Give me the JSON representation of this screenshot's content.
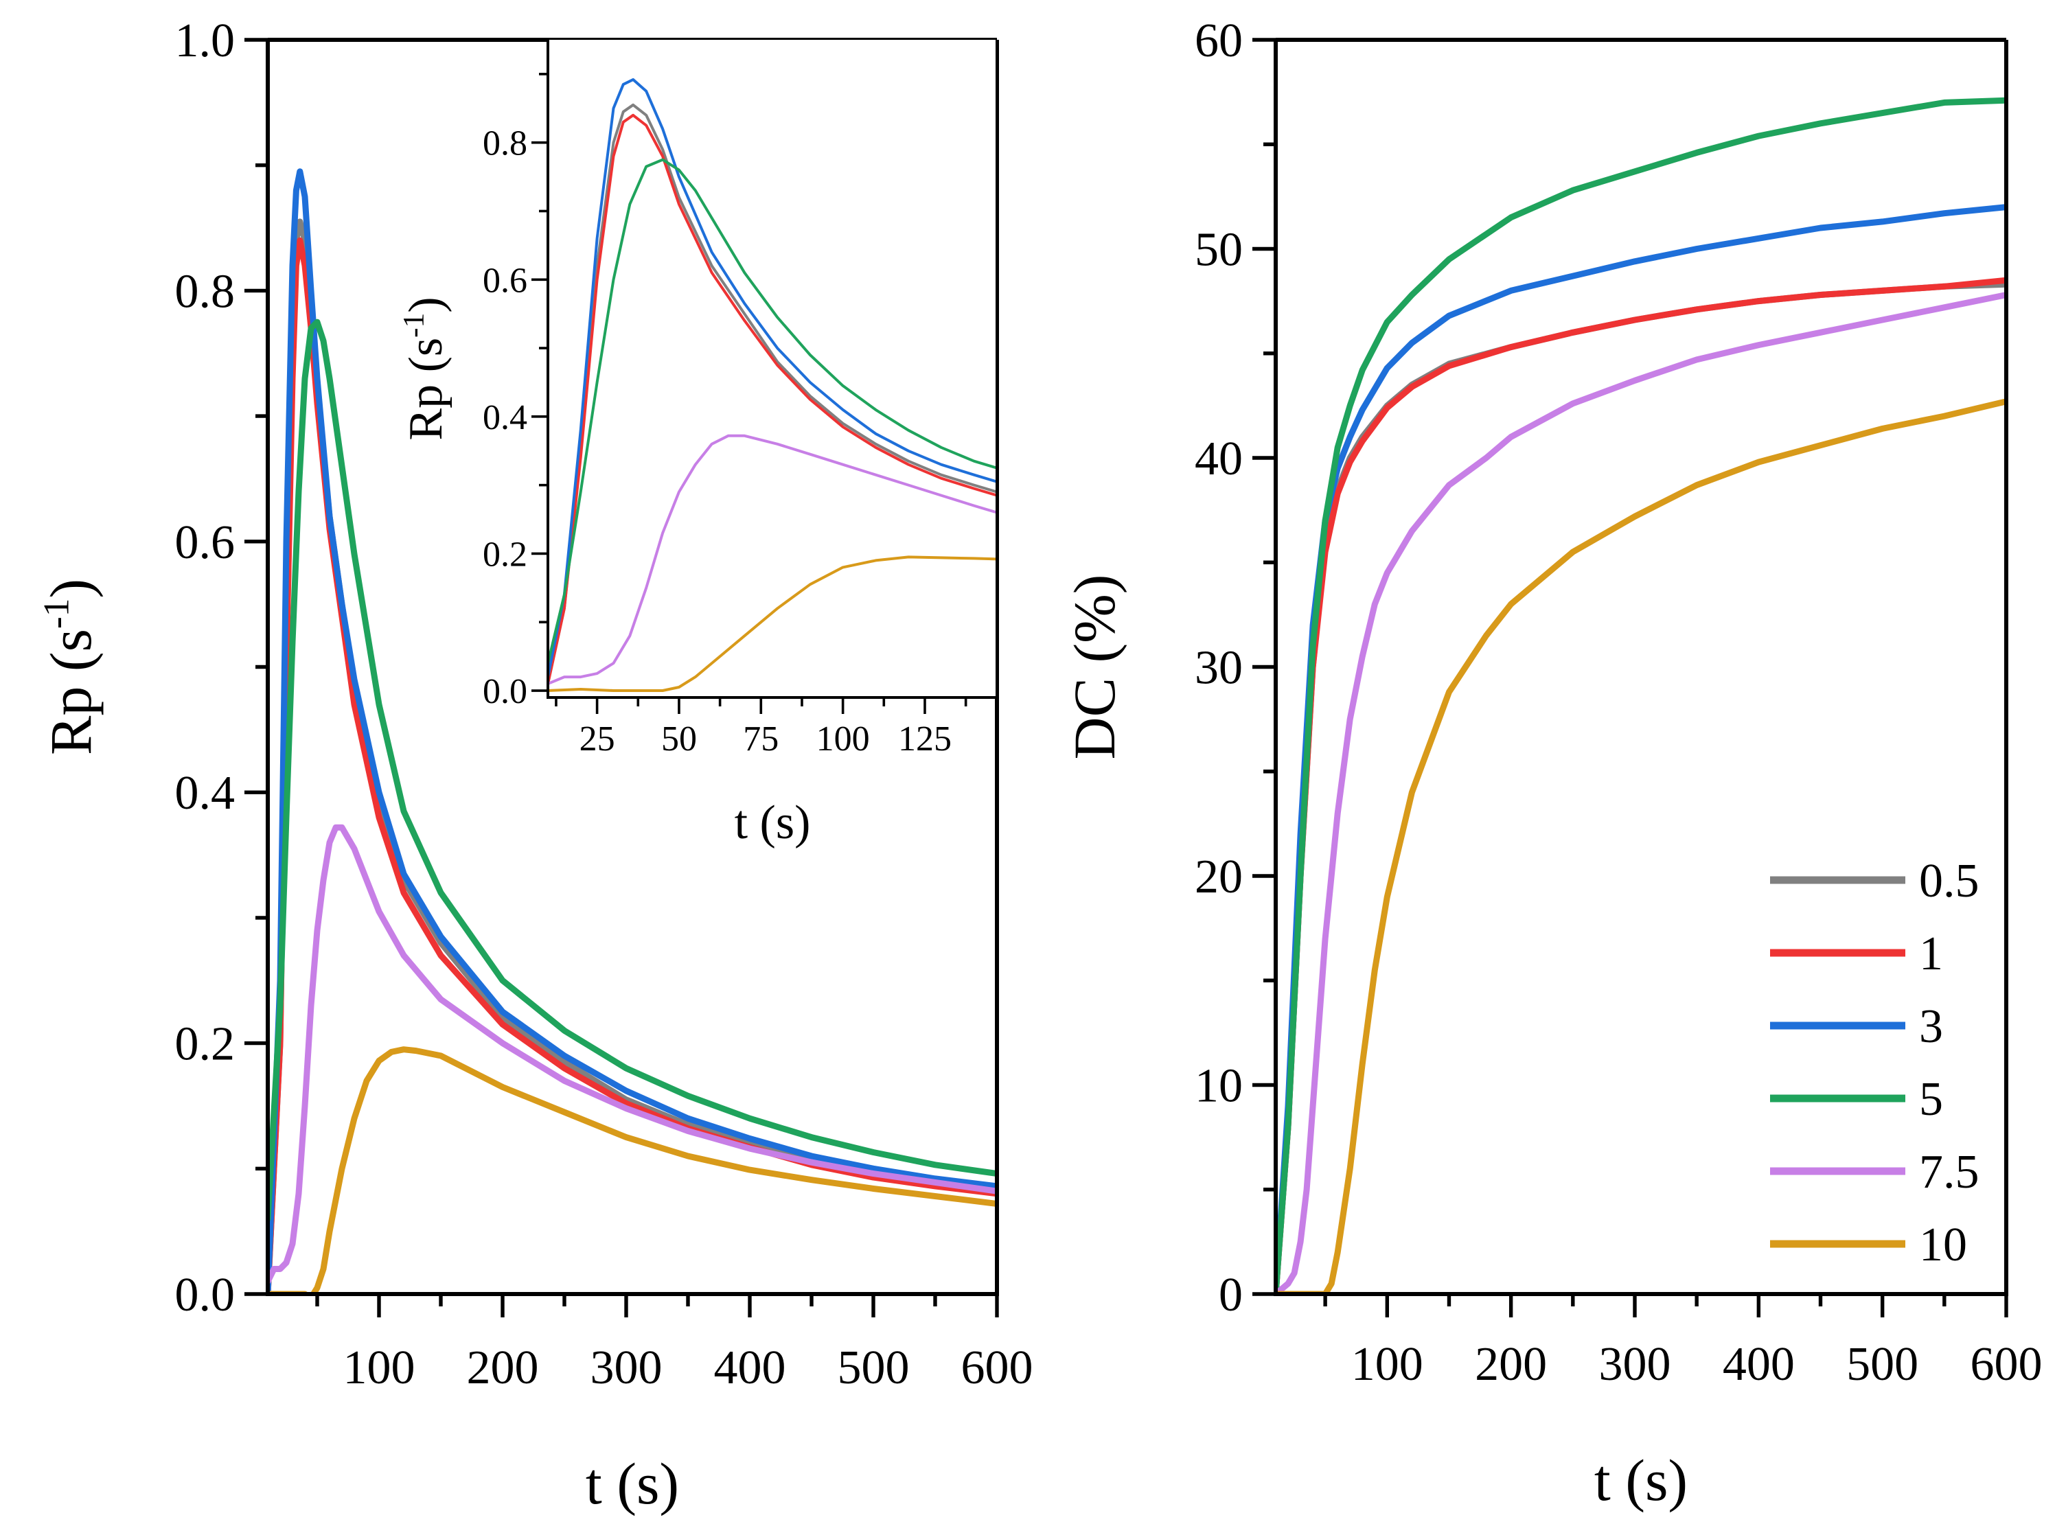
{
  "chart_data": [
    {
      "type": "line",
      "xlabel": "t (s)",
      "ylabel": "Rp (s-1)",
      "xlim": [
        10,
        600
      ],
      "ylim": [
        0,
        1.0
      ],
      "xticks": [
        100,
        200,
        300,
        400,
        500,
        600
      ],
      "yticks": [
        0.0,
        0.2,
        0.4,
        0.6,
        0.8,
        1.0
      ],
      "ytick_labels": [
        "0.0",
        "0.2",
        "0.4",
        "0.6",
        "0.8",
        "1.0"
      ],
      "series": [
        {
          "name": "0.5",
          "color": "#808080",
          "x": [
            10,
            20,
            25,
            30,
            33,
            36,
            40,
            45,
            50,
            60,
            70,
            80,
            100,
            120,
            150,
            200,
            250,
            300,
            350,
            400,
            450,
            500,
            550,
            600
          ],
          "y": [
            0.0,
            0.2,
            0.5,
            0.75,
            0.84,
            0.855,
            0.84,
            0.78,
            0.72,
            0.62,
            0.55,
            0.48,
            0.39,
            0.33,
            0.28,
            0.22,
            0.185,
            0.155,
            0.135,
            0.12,
            0.105,
            0.095,
            0.088,
            0.082
          ]
        },
        {
          "name": "1",
          "color": "#ee3333",
          "x": [
            10,
            20,
            25,
            30,
            33,
            36,
            40,
            45,
            50,
            60,
            70,
            80,
            100,
            120,
            150,
            200,
            250,
            300,
            350,
            400,
            450,
            500,
            550,
            600
          ],
          "y": [
            0.0,
            0.2,
            0.5,
            0.73,
            0.82,
            0.84,
            0.82,
            0.77,
            0.71,
            0.61,
            0.54,
            0.47,
            0.38,
            0.32,
            0.27,
            0.215,
            0.18,
            0.152,
            0.132,
            0.117,
            0.103,
            0.093,
            0.086,
            0.08
          ]
        },
        {
          "name": "3",
          "color": "#1e6fd9",
          "x": [
            10,
            20,
            25,
            30,
            33,
            36,
            40,
            45,
            50,
            60,
            70,
            80,
            100,
            120,
            150,
            200,
            250,
            300,
            350,
            400,
            450,
            500,
            550,
            600
          ],
          "y": [
            0.0,
            0.25,
            0.6,
            0.82,
            0.88,
            0.895,
            0.875,
            0.8,
            0.73,
            0.62,
            0.55,
            0.49,
            0.4,
            0.335,
            0.285,
            0.225,
            0.19,
            0.162,
            0.14,
            0.124,
            0.11,
            0.1,
            0.092,
            0.086
          ]
        },
        {
          "name": "5",
          "color": "#1fa35c",
          "x": [
            10,
            20,
            25,
            30,
            35,
            40,
            45,
            50,
            55,
            60,
            70,
            80,
            100,
            120,
            150,
            200,
            250,
            300,
            350,
            400,
            450,
            500,
            550,
            600
          ],
          "y": [
            0.06,
            0.23,
            0.38,
            0.52,
            0.64,
            0.73,
            0.77,
            0.775,
            0.76,
            0.73,
            0.66,
            0.59,
            0.47,
            0.385,
            0.32,
            0.25,
            0.21,
            0.18,
            0.158,
            0.14,
            0.125,
            0.113,
            0.103,
            0.096
          ]
        },
        {
          "name": "7.5",
          "color": "#c77fe6",
          "x": [
            10,
            15,
            20,
            25,
            30,
            35,
            40,
            45,
            50,
            55,
            60,
            65,
            70,
            80,
            90,
            100,
            120,
            150,
            200,
            250,
            300,
            350,
            400,
            450,
            500,
            550,
            600
          ],
          "y": [
            0.01,
            0.02,
            0.02,
            0.025,
            0.04,
            0.08,
            0.15,
            0.23,
            0.29,
            0.33,
            0.36,
            0.372,
            0.372,
            0.355,
            0.33,
            0.305,
            0.27,
            0.235,
            0.2,
            0.17,
            0.148,
            0.13,
            0.116,
            0.105,
            0.096,
            0.089,
            0.082
          ]
        },
        {
          "name": "10",
          "color": "#d89a1a",
          "x": [
            10,
            20,
            30,
            40,
            45,
            50,
            55,
            60,
            70,
            80,
            90,
            100,
            110,
            120,
            130,
            150,
            200,
            250,
            300,
            350,
            400,
            450,
            500,
            550,
            600
          ],
          "y": [
            0.0,
            0.0,
            0.0,
            0.0,
            -0.003,
            0.005,
            0.02,
            0.05,
            0.1,
            0.14,
            0.17,
            0.186,
            0.193,
            0.195,
            0.194,
            0.19,
            0.165,
            0.145,
            0.125,
            0.11,
            0.099,
            0.091,
            0.084,
            0.078,
            0.072
          ]
        }
      ]
    },
    {
      "type": "line",
      "inset": true,
      "xlabel": "t (s)",
      "ylabel": "Rp (s-1)",
      "xlim": [
        10,
        147
      ],
      "ylim": [
        -0.01,
        0.95
      ],
      "xticks": [
        25,
        50,
        75,
        100,
        125
      ],
      "yticks": [
        0.0,
        0.2,
        0.4,
        0.6,
        0.8
      ],
      "ytick_labels": [
        "0.0",
        "0.2",
        "0.4",
        "0.6",
        "0.8"
      ],
      "series": [
        {
          "name": "0.5",
          "color": "#808080",
          "x": [
            10,
            15,
            20,
            25,
            30,
            33,
            36,
            40,
            45,
            50,
            60,
            70,
            80,
            90,
            100,
            110,
            120,
            130,
            140,
            147
          ],
          "y": [
            0.01,
            0.12,
            0.35,
            0.62,
            0.8,
            0.845,
            0.855,
            0.84,
            0.79,
            0.72,
            0.62,
            0.55,
            0.48,
            0.43,
            0.39,
            0.36,
            0.335,
            0.315,
            0.3,
            0.29
          ]
        },
        {
          "name": "1",
          "color": "#ee3333",
          "x": [
            10,
            15,
            20,
            25,
            30,
            33,
            36,
            40,
            45,
            50,
            60,
            70,
            80,
            90,
            100,
            110,
            120,
            130,
            140,
            147
          ],
          "y": [
            0.01,
            0.12,
            0.34,
            0.6,
            0.78,
            0.83,
            0.84,
            0.825,
            0.78,
            0.71,
            0.61,
            0.54,
            0.475,
            0.425,
            0.385,
            0.355,
            0.33,
            0.31,
            0.295,
            0.285
          ]
        },
        {
          "name": "3",
          "color": "#1e6fd9",
          "x": [
            10,
            15,
            20,
            25,
            30,
            33,
            36,
            40,
            45,
            50,
            60,
            70,
            80,
            90,
            100,
            110,
            120,
            130,
            140,
            147
          ],
          "y": [
            0.02,
            0.14,
            0.38,
            0.66,
            0.85,
            0.885,
            0.892,
            0.875,
            0.82,
            0.75,
            0.64,
            0.565,
            0.5,
            0.45,
            0.41,
            0.375,
            0.35,
            0.33,
            0.315,
            0.305
          ]
        },
        {
          "name": "5",
          "color": "#1fa35c",
          "x": [
            10,
            15,
            20,
            25,
            30,
            35,
            40,
            45,
            50,
            55,
            60,
            70,
            80,
            90,
            100,
            110,
            120,
            130,
            140,
            147
          ],
          "y": [
            0.04,
            0.14,
            0.29,
            0.45,
            0.6,
            0.71,
            0.765,
            0.775,
            0.76,
            0.73,
            0.69,
            0.61,
            0.545,
            0.49,
            0.445,
            0.41,
            0.38,
            0.355,
            0.335,
            0.325
          ]
        },
        {
          "name": "7.5",
          "color": "#c77fe6",
          "x": [
            10,
            15,
            20,
            25,
            30,
            35,
            40,
            45,
            50,
            55,
            60,
            65,
            70,
            80,
            90,
            100,
            110,
            120,
            130,
            140,
            147
          ],
          "y": [
            0.01,
            0.02,
            0.02,
            0.025,
            0.04,
            0.08,
            0.15,
            0.23,
            0.29,
            0.33,
            0.36,
            0.372,
            0.372,
            0.36,
            0.345,
            0.33,
            0.315,
            0.3,
            0.285,
            0.27,
            0.26
          ]
        },
        {
          "name": "10",
          "color": "#d89a1a",
          "x": [
            10,
            20,
            30,
            40,
            45,
            50,
            55,
            60,
            70,
            80,
            90,
            100,
            110,
            120,
            130,
            140,
            147
          ],
          "y": [
            0.0,
            0.002,
            0.0,
            0.0,
            0.0,
            0.005,
            0.02,
            0.04,
            0.08,
            0.12,
            0.155,
            0.18,
            0.19,
            0.195,
            0.194,
            0.193,
            0.192
          ]
        }
      ]
    },
    {
      "type": "line",
      "xlabel": "t (s)",
      "ylabel": "DC (%)",
      "xlim": [
        10,
        600
      ],
      "ylim": [
        0,
        60
      ],
      "xticks": [
        100,
        200,
        300,
        400,
        500,
        600
      ],
      "yticks": [
        0,
        10,
        20,
        30,
        40,
        50,
        60
      ],
      "ytick_labels": [
        "0",
        "10",
        "20",
        "30",
        "40",
        "50",
        "60"
      ],
      "legend": "bottom-right",
      "series": [
        {
          "name": "0.5",
          "color": "#808080",
          "x": [
            10,
            20,
            30,
            40,
            50,
            60,
            70,
            80,
            100,
            120,
            150,
            200,
            250,
            300,
            350,
            400,
            450,
            500,
            550,
            600
          ],
          "y": [
            0,
            8,
            20,
            30,
            36,
            38.5,
            40,
            41,
            42.5,
            43.5,
            44.5,
            45.3,
            46,
            46.6,
            47.1,
            47.5,
            47.8,
            48,
            48.2,
            48.3
          ]
        },
        {
          "name": "1",
          "color": "#ee3333",
          "x": [
            10,
            20,
            30,
            40,
            50,
            60,
            70,
            80,
            100,
            120,
            150,
            200,
            250,
            300,
            350,
            400,
            450,
            500,
            550,
            600
          ],
          "y": [
            0,
            8,
            20,
            30,
            35.5,
            38.3,
            39.8,
            40.8,
            42.4,
            43.4,
            44.4,
            45.3,
            46,
            46.6,
            47.1,
            47.5,
            47.8,
            48,
            48.2,
            48.5
          ]
        },
        {
          "name": "3",
          "color": "#1e6fd9",
          "x": [
            10,
            20,
            30,
            40,
            50,
            60,
            70,
            80,
            100,
            120,
            150,
            200,
            250,
            300,
            350,
            400,
            450,
            500,
            550,
            600
          ],
          "y": [
            0,
            9,
            22,
            32,
            37,
            39.5,
            41,
            42.3,
            44.3,
            45.5,
            46.8,
            48,
            48.7,
            49.4,
            50,
            50.5,
            51,
            51.3,
            51.7,
            52
          ]
        },
        {
          "name": "5",
          "color": "#1fa35c",
          "x": [
            10,
            20,
            30,
            40,
            50,
            60,
            70,
            80,
            100,
            120,
            150,
            200,
            250,
            300,
            350,
            400,
            450,
            500,
            550,
            600
          ],
          "y": [
            0,
            8,
            20,
            31,
            37,
            40.5,
            42.5,
            44.2,
            46.5,
            47.8,
            49.5,
            51.5,
            52.8,
            53.7,
            54.6,
            55.4,
            56,
            56.5,
            57,
            57.1
          ]
        },
        {
          "name": "7.5",
          "color": "#c77fe6",
          "x": [
            10,
            20,
            25,
            30,
            35,
            40,
            50,
            60,
            70,
            80,
            90,
            100,
            120,
            150,
            180,
            200,
            250,
            300,
            350,
            400,
            450,
            500,
            550,
            600
          ],
          "y": [
            0,
            0.5,
            1,
            2.5,
            5,
            9,
            17,
            23,
            27.5,
            30.5,
            33,
            34.5,
            36.5,
            38.7,
            40,
            41,
            42.6,
            43.7,
            44.7,
            45.4,
            46,
            46.6,
            47.2,
            47.8
          ]
        },
        {
          "name": "10",
          "color": "#d89a1a",
          "x": [
            10,
            20,
            30,
            40,
            50,
            55,
            60,
            70,
            80,
            90,
            100,
            120,
            150,
            180,
            200,
            250,
            300,
            350,
            400,
            450,
            500,
            550,
            600
          ],
          "y": [
            0,
            0,
            0,
            0,
            0,
            0.5,
            2,
            6,
            11,
            15.5,
            19,
            24,
            28.8,
            31.5,
            33,
            35.5,
            37.2,
            38.7,
            39.8,
            40.6,
            41.4,
            42,
            42.7
          ]
        }
      ]
    }
  ]
}
